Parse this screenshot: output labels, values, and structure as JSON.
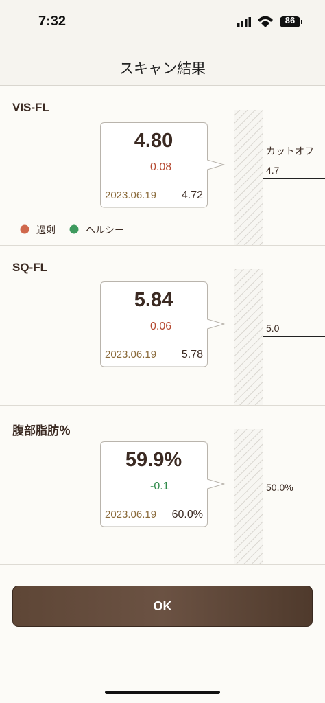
{
  "status_bar": {
    "time": "7:32",
    "battery": "86"
  },
  "header": {
    "title": "スキャン結果"
  },
  "sections": [
    {
      "title": "VIS-FL",
      "value": "4.80",
      "direction": "up",
      "change": "0.08",
      "previous_date": "2023.06.19",
      "previous_value": "4.72",
      "cutoff_label": "カットオフ",
      "cutoff": "4.7",
      "bar_color": "#d0684c",
      "legend": [
        {
          "label": "過剰",
          "color": "#d0684c"
        },
        {
          "label": "ヘルシー",
          "color": "#3e9a5e"
        }
      ]
    },
    {
      "title": "SQ-FL",
      "value": "5.84",
      "direction": "up",
      "change": "0.06",
      "previous_date": "2023.06.19",
      "previous_value": "5.78",
      "cutoff": "5.0",
      "bar_color": "#fdd03f"
    },
    {
      "title": "腹部脂肪％",
      "value": "59.9%",
      "direction": "down",
      "change": "-0.1",
      "previous_date": "2023.06.19",
      "previous_value": "60.0%",
      "cutoff": "50.0%",
      "bar_color": "#976b45"
    }
  ],
  "button": {
    "label": "OK"
  }
}
